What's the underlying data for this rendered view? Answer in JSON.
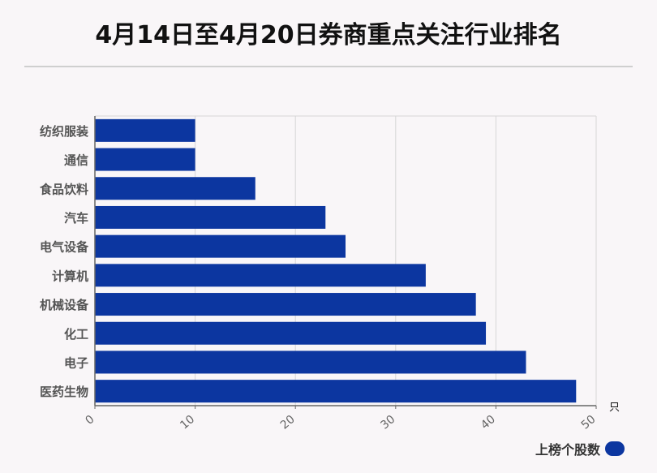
{
  "title": "4月14日至4月20日券商重点关注行业排名",
  "unit": "只",
  "legend_label": "上榜个股数",
  "colors": {
    "bar": "#0c36a0",
    "grid": "#d6d6d6",
    "axis": "#666666"
  },
  "chart_data": {
    "type": "bar",
    "orientation": "horizontal",
    "title": "4月14日至4月20日券商重点关注行业排名",
    "categories": [
      "纺织服装",
      "通信",
      "食品饮料",
      "汽车",
      "电气设备",
      "计算机",
      "机械设备",
      "化工",
      "电子",
      "医药生物"
    ],
    "series": [
      {
        "name": "上榜个股数",
        "values": [
          10,
          10,
          16,
          23,
          25,
          33,
          38,
          39,
          43,
          48
        ]
      }
    ],
    "xlim": [
      0,
      50
    ],
    "xticks": [
      0,
      10,
      20,
      30,
      40,
      50
    ],
    "xlabel": "只",
    "grid": true,
    "legend_position": "bottom-right"
  }
}
